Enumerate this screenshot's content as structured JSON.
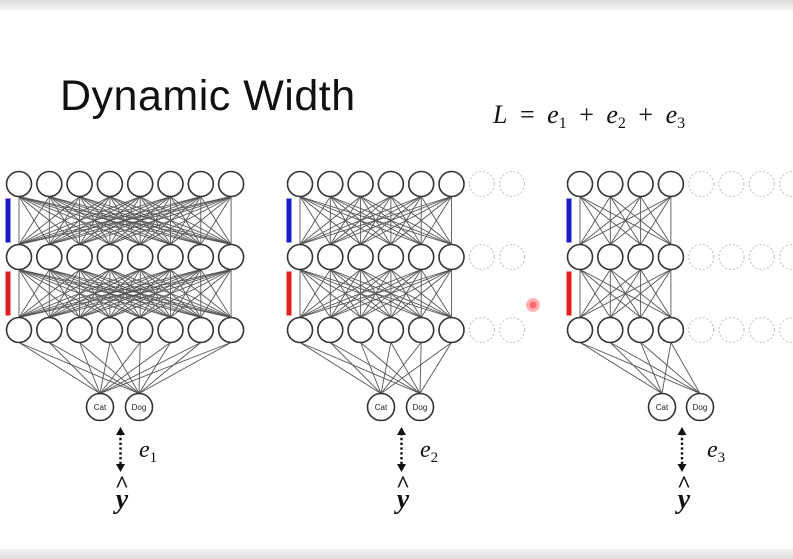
{
  "slide": {
    "title": "Dynamic Width",
    "formula": {
      "lhs": "L",
      "eq": "=",
      "terms": [
        {
          "var": "e",
          "sub": "1"
        },
        {
          "var": "e",
          "sub": "2"
        },
        {
          "var": "e",
          "sub": "3"
        }
      ],
      "plus": "+"
    }
  },
  "networks": [
    {
      "active_width": 8,
      "total_width": 8,
      "layers": 3,
      "outputs": [
        "Cat",
        "Dog"
      ],
      "error": {
        "var": "e",
        "sub": "1"
      },
      "target": "y"
    },
    {
      "active_width": 6,
      "total_width": 8,
      "layers": 3,
      "outputs": [
        "Cat",
        "Dog"
      ],
      "error": {
        "var": "e",
        "sub": "2"
      },
      "target": "y"
    },
    {
      "active_width": 4,
      "total_width": 8,
      "layers": 3,
      "outputs": [
        "Cat",
        "Dog"
      ],
      "error": {
        "var": "e",
        "sub": "3"
      },
      "target": "y"
    }
  ],
  "colors": {
    "blue_bar": "#1a1acc",
    "red_bar": "#e02020",
    "edge": "#555555",
    "inactive_node": "#c8c8c8"
  }
}
